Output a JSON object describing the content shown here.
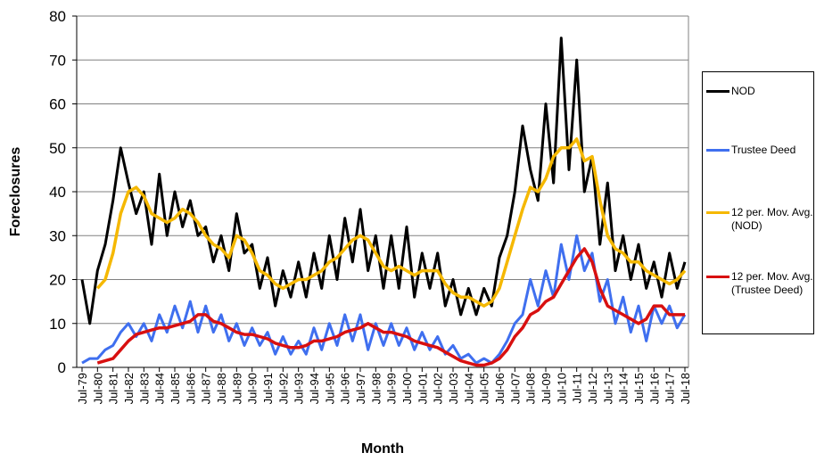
{
  "chart_data": {
    "type": "line",
    "y_label": "Foreclosures",
    "x_label": "Month",
    "categories": [
      "Jul-79",
      null,
      "Jul-80",
      null,
      "Jul-81",
      null,
      "Jul-82",
      null,
      "Jul-83",
      null,
      "Jul-84",
      null,
      "Jul-85",
      null,
      "Jul-86",
      null,
      "Jul-87",
      null,
      "Jul-88",
      null,
      "Jul-89",
      null,
      "Jul-90",
      null,
      "Jul-91",
      null,
      "Jul-92",
      null,
      "Jul-93",
      null,
      "Jul-94",
      null,
      "Jul-95",
      null,
      "Jul-96",
      null,
      "Jul-97",
      null,
      "Jul-98",
      null,
      "Jul-99",
      null,
      "Jul-00",
      null,
      "Jul-01",
      null,
      "Jul-02",
      null,
      "Jul-03",
      null,
      "Jul-04",
      null,
      "Jul-05",
      null,
      "Jul-06",
      null,
      "Jul-07",
      null,
      "Jul-08",
      null,
      "Jul-09",
      null,
      "Jul-10",
      null,
      "Jul-11",
      null,
      "Jul-12",
      null,
      "Jul-13",
      null,
      "Jul-14",
      null,
      "Jul-15",
      null,
      "Jul-16",
      null,
      "Jul-17",
      null,
      "Jul-18"
    ],
    "series": [
      {
        "name": "NOD",
        "color": "#000000",
        "values": [
          20,
          10,
          22,
          28,
          38,
          50,
          42,
          35,
          40,
          28,
          44,
          30,
          40,
          32,
          38,
          30,
          32,
          24,
          30,
          22,
          35,
          26,
          28,
          18,
          25,
          14,
          22,
          16,
          24,
          16,
          26,
          18,
          30,
          20,
          34,
          24,
          36,
          22,
          30,
          18,
          30,
          18,
          32,
          16,
          26,
          18,
          26,
          14,
          20,
          12,
          18,
          12,
          18,
          14,
          25,
          30,
          40,
          55,
          45,
          38,
          60,
          42,
          75,
          45,
          70,
          40,
          48,
          28,
          42,
          22,
          30,
          20,
          28,
          18,
          24,
          16,
          26,
          18,
          24
        ]
      },
      {
        "name": "Trustee Deed",
        "color": "#3f6fef",
        "values": [
          1,
          2,
          2,
          4,
          5,
          8,
          10,
          7,
          10,
          6,
          12,
          8,
          14,
          9,
          15,
          8,
          14,
          8,
          12,
          6,
          10,
          5,
          9,
          5,
          8,
          3,
          7,
          3,
          6,
          3,
          9,
          4,
          10,
          5,
          12,
          6,
          12,
          4,
          10,
          5,
          10,
          5,
          9,
          4,
          8,
          4,
          7,
          3,
          5,
          2,
          3,
          1,
          2,
          1,
          3,
          6,
          10,
          12,
          20,
          14,
          22,
          16,
          28,
          20,
          30,
          22,
          26,
          15,
          20,
          10,
          16,
          8,
          14,
          6,
          14,
          10,
          14,
          9,
          12
        ]
      },
      {
        "name": "12 per. Mov. Avg. (NOD)",
        "color": "#f5b800",
        "values": [
          null,
          null,
          18,
          20,
          26,
          35,
          40,
          41,
          39,
          35,
          34,
          33,
          34,
          36,
          35,
          33,
          30,
          28,
          27,
          25,
          30,
          29,
          26,
          22,
          21,
          19,
          18,
          19,
          20,
          20,
          21,
          22,
          24,
          25,
          27,
          29,
          30,
          29,
          26,
          23,
          22,
          23,
          22,
          21,
          22,
          22,
          22,
          19,
          17,
          16,
          16,
          15,
          14,
          15,
          18,
          24,
          30,
          36,
          41,
          40,
          43,
          48,
          50,
          50,
          52,
          47,
          48,
          38,
          30,
          27,
          26,
          24,
          24,
          22,
          21,
          20,
          19,
          20,
          22
        ]
      },
      {
        "name": "12 per. Mov. Avg. (Trustee Deed)",
        "color": "#d81010",
        "values": [
          null,
          null,
          1,
          1.5,
          2,
          4,
          6,
          7.5,
          8,
          8.5,
          9,
          9,
          9.5,
          10,
          10.5,
          12,
          12,
          10.5,
          10,
          9,
          8,
          7.5,
          7.5,
          7,
          6.5,
          5.5,
          5,
          4.5,
          4.5,
          5,
          6,
          6,
          6.5,
          7,
          8,
          8.5,
          9,
          10,
          9,
          8,
          8,
          7.5,
          7,
          6,
          5.5,
          5,
          4.5,
          3.5,
          2.5,
          1.5,
          1,
          0.5,
          0.5,
          1,
          2,
          4,
          7,
          9,
          12,
          13,
          15,
          16,
          19,
          22,
          25,
          27,
          24,
          18,
          14,
          13,
          12,
          11,
          10,
          11,
          14,
          14,
          12,
          12,
          12
        ]
      }
    ],
    "ylim": [
      0,
      80
    ],
    "yticks": [
      0,
      10,
      20,
      30,
      40,
      50,
      60,
      70,
      80
    ],
    "grid": true
  }
}
